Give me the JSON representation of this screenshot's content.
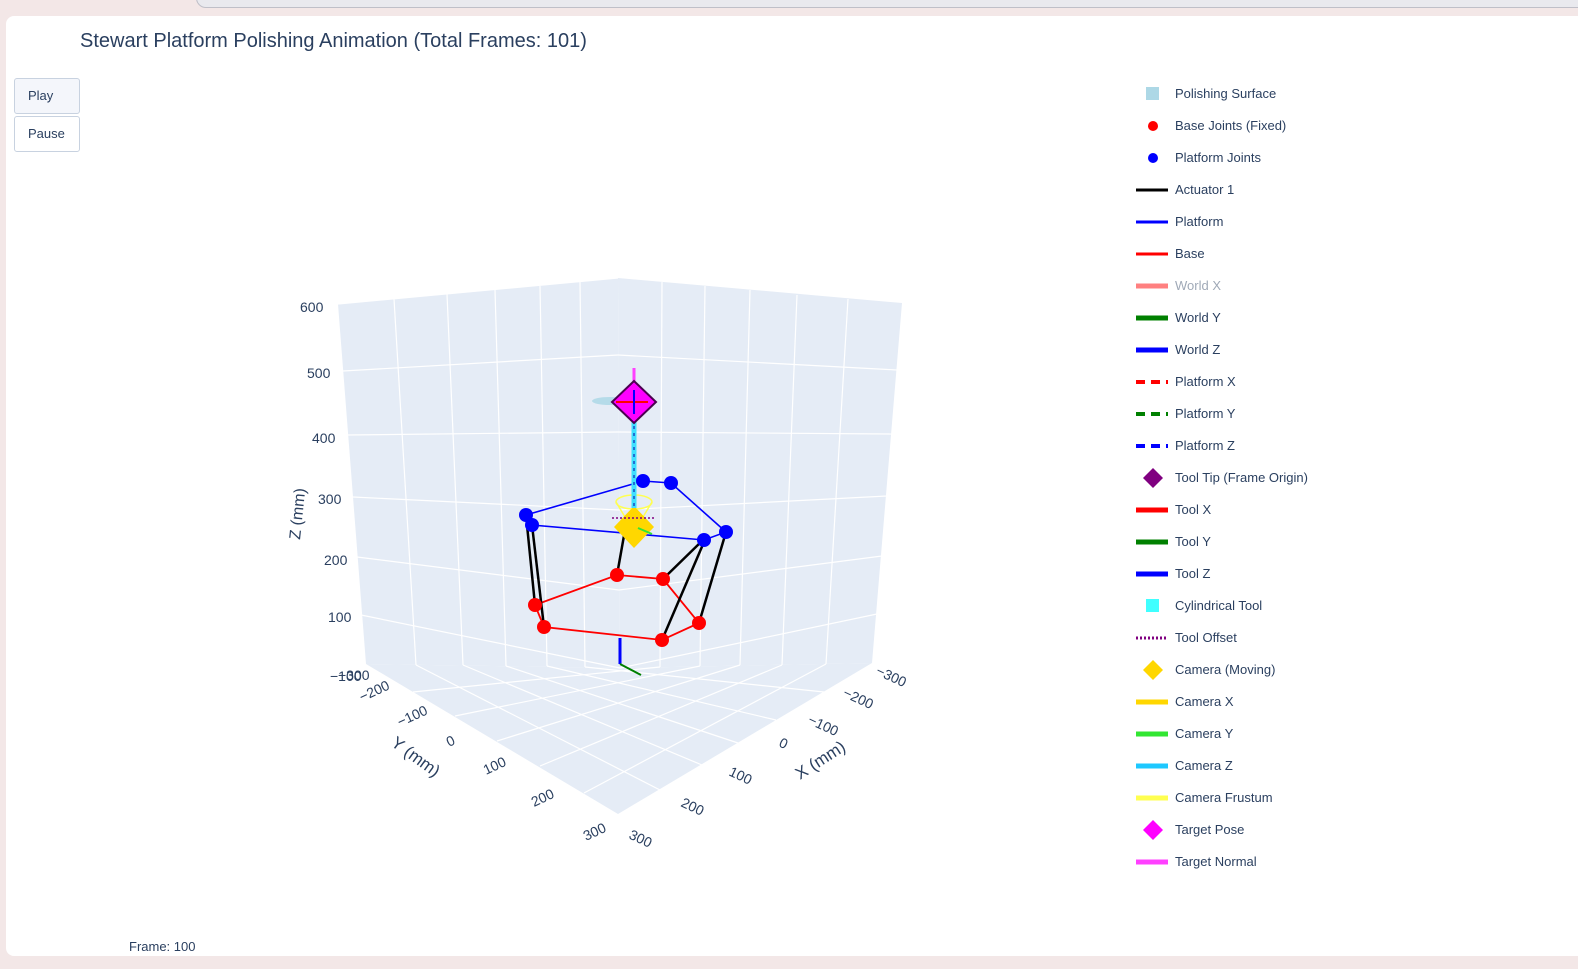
{
  "title": "Stewart Platform Polishing Animation (Total Frames: 101)",
  "controls": {
    "play_label": "Play",
    "pause_label": "Pause"
  },
  "slider": {
    "frame_label": "Frame: 100"
  },
  "axes": {
    "z_title": "Z (mm)",
    "y_title": "Y (mm)",
    "x_title": "X (mm)",
    "z_ticks": [
      "600",
      "500",
      "400",
      "300",
      "200",
      "100",
      "−100"
    ],
    "y_ticks": [
      "−300",
      "−200",
      "−100",
      "0",
      "100",
      "200",
      "300"
    ],
    "x_ticks": [
      "300",
      "200",
      "100",
      "0",
      "−100",
      "−200",
      "−300"
    ]
  },
  "legend": [
    {
      "label": "Polishing Surface",
      "symbol": "square",
      "color": "#add8e6",
      "dim": false
    },
    {
      "label": "Base Joints (Fixed)",
      "symbol": "dot",
      "color": "#ff0000",
      "dim": false
    },
    {
      "label": "Platform Joints",
      "symbol": "dot",
      "color": "#0000ff",
      "dim": false
    },
    {
      "label": "Actuator 1",
      "symbol": "line",
      "color": "#000000",
      "dim": false
    },
    {
      "label": "Platform",
      "symbol": "line",
      "color": "#0000ff",
      "dim": false
    },
    {
      "label": "Base",
      "symbol": "line",
      "color": "#ff0000",
      "dim": false
    },
    {
      "label": "World X",
      "symbol": "thick",
      "color": "#ff8080",
      "dim": true
    },
    {
      "label": "World Y",
      "symbol": "thick",
      "color": "#008000",
      "dim": false
    },
    {
      "label": "World Z",
      "symbol": "thick",
      "color": "#0000ff",
      "dim": false
    },
    {
      "label": "Platform X",
      "symbol": "dash",
      "color": "#ff0000",
      "dim": false
    },
    {
      "label": "Platform Y",
      "symbol": "dash",
      "color": "#008000",
      "dim": false
    },
    {
      "label": "Platform Z",
      "symbol": "dash",
      "color": "#0000ff",
      "dim": false
    },
    {
      "label": "Tool Tip (Frame Origin)",
      "symbol": "diamond",
      "color": "#800080",
      "dim": false
    },
    {
      "label": "Tool X",
      "symbol": "thick",
      "color": "#ff0000",
      "dim": false
    },
    {
      "label": "Tool Y",
      "symbol": "thick",
      "color": "#008000",
      "dim": false
    },
    {
      "label": "Tool Z",
      "symbol": "thick",
      "color": "#0000ff",
      "dim": false
    },
    {
      "label": "Cylindrical Tool",
      "symbol": "square",
      "color": "#40ffff",
      "dim": false
    },
    {
      "label": "Tool Offset",
      "symbol": "dot-line",
      "color": "#800080",
      "dim": false
    },
    {
      "label": "Camera (Moving)",
      "symbol": "diamond",
      "color": "#ffd700",
      "dim": false
    },
    {
      "label": "Camera X",
      "symbol": "thick",
      "color": "#ffd700",
      "dim": false
    },
    {
      "label": "Camera Y",
      "symbol": "thick",
      "color": "#32e632",
      "dim": false
    },
    {
      "label": "Camera Z",
      "symbol": "thick",
      "color": "#1ec8ff",
      "dim": false
    },
    {
      "label": "Camera Frustum",
      "symbol": "thick",
      "color": "#ffff50",
      "dim": false
    },
    {
      "label": "Target Pose",
      "symbol": "diamond",
      "color": "#ff00ff",
      "dim": false
    },
    {
      "label": "Target Normal",
      "symbol": "thick",
      "color": "#ff40ff",
      "dim": false
    }
  ]
}
